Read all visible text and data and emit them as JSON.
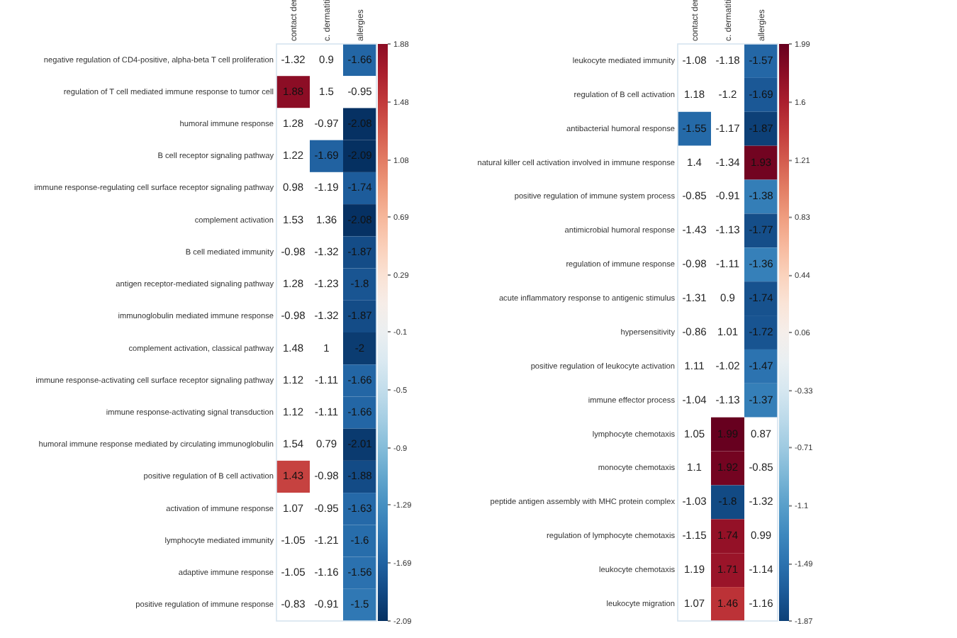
{
  "chart_data": [
    {
      "type": "heatmap",
      "categories": [
        "contact der",
        "c. dermatiti",
        "allergies"
      ],
      "y_categories": [
        "negative regulation of CD4-positive, alpha-beta T cell proliferation",
        "regulation of T cell mediated immune response to tumor cell",
        "humoral immune response",
        "B cell receptor signaling pathway",
        "immune response-regulating cell surface receptor signaling pathway",
        "complement activation",
        "B cell mediated immunity",
        "antigen receptor-mediated signaling pathway",
        "immunoglobulin mediated immune response",
        "complement activation, classical pathway",
        "immune response-activating cell surface receptor signaling pathway",
        "immune response-activating signal transduction",
        "humoral immune response mediated by circulating immunoglobulin",
        "positive regulation of B cell activation",
        "activation of immune response",
        "lymphocyte mediated immunity",
        "adaptive immune response",
        "positive regulation of immune response"
      ],
      "cells": [
        [
          null,
          null,
          -1.66
        ],
        [
          1.88,
          null,
          null
        ],
        [
          null,
          null,
          -2.08
        ],
        [
          null,
          -1.69,
          -2.09
        ],
        [
          null,
          null,
          -1.74
        ],
        [
          null,
          null,
          -2.08
        ],
        [
          null,
          null,
          -1.87
        ],
        [
          null,
          null,
          -1.8
        ],
        [
          null,
          null,
          -1.87
        ],
        [
          null,
          null,
          -2
        ],
        [
          null,
          null,
          -1.66
        ],
        [
          null,
          null,
          -1.66
        ],
        [
          null,
          null,
          -2.01
        ],
        [
          1.43,
          null,
          -1.88
        ],
        [
          null,
          null,
          -1.63
        ],
        [
          null,
          null,
          -1.6
        ],
        [
          null,
          null,
          -1.56
        ],
        [
          null,
          null,
          -1.5
        ]
      ],
      "cell_labels": [
        [
          "-1.32",
          "0.9",
          "-1.66"
        ],
        [
          "1.88",
          "1.5",
          "-0.95"
        ],
        [
          "1.28",
          "-0.97",
          "-2.08"
        ],
        [
          "1.22",
          "-1.69",
          "-2.09"
        ],
        [
          "0.98",
          "-1.19",
          "-1.74"
        ],
        [
          "1.53",
          "1.36",
          "-2.08"
        ],
        [
          "-0.98",
          "-1.32",
          "-1.87"
        ],
        [
          "1.28",
          "-1.23",
          "-1.8"
        ],
        [
          "-0.98",
          "-1.32",
          "-1.87"
        ],
        [
          "1.48",
          "1",
          "-2"
        ],
        [
          "1.12",
          "-1.11",
          "-1.66"
        ],
        [
          "1.12",
          "-1.11",
          "-1.66"
        ],
        [
          "1.54",
          "0.79",
          "-2.01"
        ],
        [
          "1.43",
          "-0.98",
          "-1.88"
        ],
        [
          "1.07",
          "-0.95",
          "-1.63"
        ],
        [
          "-1.05",
          "-1.21",
          "-1.6"
        ],
        [
          "-1.05",
          "-1.16",
          "-1.56"
        ],
        [
          "-0.83",
          "-0.91",
          "-1.5"
        ]
      ],
      "clim": [
        -2.09,
        1.88
      ],
      "cticks": [
        1.88,
        1.48,
        1.08,
        0.69,
        0.29,
        -0.1,
        -0.5,
        -0.9,
        -1.29,
        -1.69,
        -2.09
      ]
    },
    {
      "type": "heatmap",
      "categories": [
        "contact der",
        "c. dermatiti",
        "allergies"
      ],
      "y_categories": [
        "leukocyte mediated immunity",
        "regulation of B cell activation",
        "antibacterial humoral response",
        "natural killer cell activation involved in immune response",
        "positive regulation of immune system process",
        "antimicrobial humoral response",
        "regulation of immune response",
        "acute inflammatory response to antigenic stimulus",
        "hypersensitivity",
        "positive regulation of leukocyte activation",
        "immune effector process",
        "lymphocyte chemotaxis",
        "monocyte chemotaxis",
        "peptide antigen assembly with MHC protein complex",
        "regulation of lymphocyte chemotaxis",
        "leukocyte chemotaxis",
        "leukocyte migration"
      ],
      "cells": [
        [
          null,
          null,
          -1.57
        ],
        [
          null,
          null,
          -1.69
        ],
        [
          -1.55,
          null,
          -1.87
        ],
        [
          null,
          null,
          1.93
        ],
        [
          null,
          null,
          -1.38
        ],
        [
          null,
          null,
          -1.77
        ],
        [
          null,
          null,
          -1.36
        ],
        [
          null,
          null,
          -1.74
        ],
        [
          null,
          null,
          -1.72
        ],
        [
          null,
          null,
          -1.47
        ],
        [
          null,
          null,
          -1.37
        ],
        [
          null,
          1.99,
          null
        ],
        [
          null,
          1.92,
          null
        ],
        [
          null,
          -1.8,
          null
        ],
        [
          null,
          1.74,
          null
        ],
        [
          null,
          1.71,
          null
        ],
        [
          null,
          1.46,
          null
        ]
      ],
      "cell_labels": [
        [
          "-1.08",
          "-1.18",
          "-1.57"
        ],
        [
          "1.18",
          "-1.2",
          "-1.69"
        ],
        [
          "-1.55",
          "-1.17",
          "-1.87"
        ],
        [
          "1.4",
          "-1.34",
          "1.93"
        ],
        [
          "-0.85",
          "-0.91",
          "-1.38"
        ],
        [
          "-1.43",
          "-1.13",
          "-1.77"
        ],
        [
          "-0.98",
          "-1.11",
          "-1.36"
        ],
        [
          "-1.31",
          "0.9",
          "-1.74"
        ],
        [
          "-0.86",
          "1.01",
          "-1.72"
        ],
        [
          "1.11",
          "-1.02",
          "-1.47"
        ],
        [
          "-1.04",
          "-1.13",
          "-1.37"
        ],
        [
          "1.05",
          "1.99",
          "0.87"
        ],
        [
          "1.1",
          "1.92",
          "-0.85"
        ],
        [
          "-1.03",
          "-1.8",
          "-1.32"
        ],
        [
          "-1.15",
          "1.74",
          "0.99"
        ],
        [
          "1.19",
          "1.71",
          "-1.14"
        ],
        [
          "1.07",
          "1.46",
          "-1.16"
        ]
      ],
      "clim": [
        -1.87,
        1.99
      ],
      "cticks": [
        1.99,
        1.6,
        1.21,
        0.83,
        0.44,
        0.06,
        -0.33,
        -0.71,
        -1.1,
        -1.49,
        -1.87
      ]
    }
  ]
}
